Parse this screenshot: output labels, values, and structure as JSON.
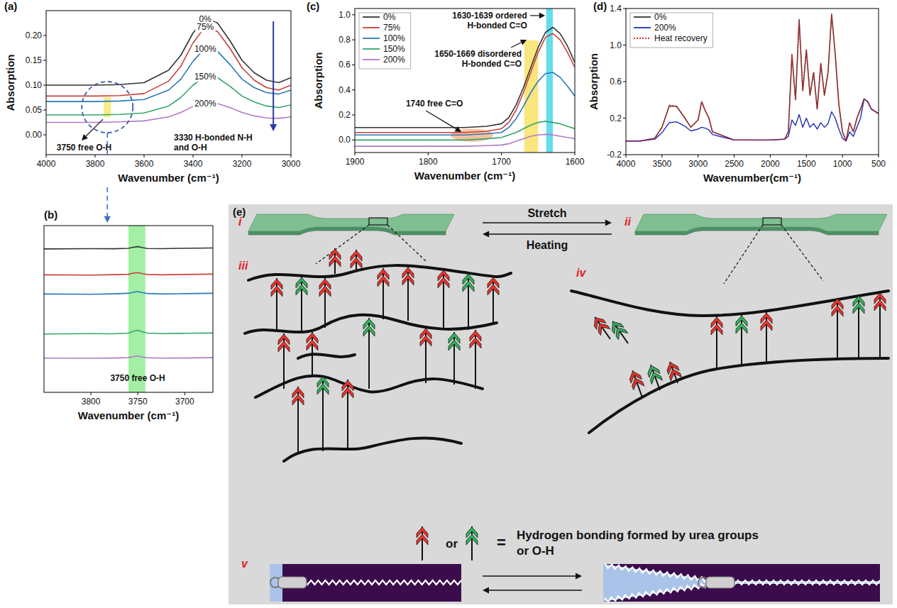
{
  "chart_data": [
    {
      "type": "line",
      "panel_label": "(a)",
      "x_label": "Wavenumber (cm⁻¹)",
      "y_label": "Absorption",
      "xlim": [
        4000,
        3000
      ],
      "xticks": [
        4000,
        3800,
        3600,
        3400,
        3200,
        3000
      ],
      "ylim": [
        -0.04,
        0.25
      ],
      "yticks": [
        {
          "value": 0,
          "label": "0.00"
        },
        0.05,
        {
          "value": 0.1,
          "label": "0.10"
        },
        0.15,
        {
          "value": 0.2,
          "label": "0.20"
        }
      ],
      "legend": "inline",
      "x": [
        4000,
        3900,
        3800,
        3700,
        3600,
        3500,
        3450,
        3400,
        3350,
        3300,
        3250,
        3200,
        3150,
        3100,
        3050,
        3000
      ],
      "series": [
        {
          "name": "0%",
          "color": "#333333",
          "values": [
            0.1,
            0.1,
            0.1,
            0.101,
            0.105,
            0.13,
            0.16,
            0.205,
            0.235,
            0.225,
            0.19,
            0.15,
            0.125,
            0.11,
            0.105,
            0.115
          ]
        },
        {
          "name": "75%",
          "color": "#c9403b",
          "values": [
            0.078,
            0.078,
            0.078,
            0.079,
            0.083,
            0.108,
            0.138,
            0.185,
            0.218,
            0.208,
            0.175,
            0.135,
            0.11,
            0.095,
            0.09,
            0.1
          ]
        },
        {
          "name": "100%",
          "color": "#2a78b8",
          "values": [
            0.067,
            0.067,
            0.067,
            0.068,
            0.071,
            0.09,
            0.112,
            0.148,
            0.175,
            0.168,
            0.142,
            0.112,
            0.095,
            0.085,
            0.082,
            0.09
          ]
        },
        {
          "name": "150%",
          "color": "#35a56a",
          "values": [
            0.04,
            0.04,
            0.04,
            0.041,
            0.044,
            0.058,
            0.075,
            0.1,
            0.118,
            0.115,
            0.098,
            0.078,
            0.066,
            0.058,
            0.055,
            0.06
          ]
        },
        {
          "name": "200%",
          "color": "#b07ac6",
          "values": [
            0.025,
            0.025,
            0.025,
            0.026,
            0.028,
            0.036,
            0.045,
            0.057,
            0.064,
            0.063,
            0.055,
            0.045,
            0.038,
            0.034,
            0.033,
            0.036
          ]
        }
      ],
      "bands": [
        {
          "from": 3765,
          "to": 3735,
          "color": "#f7e96a"
        }
      ],
      "annotations": [
        {
          "lines": [
            "3750 free O-H"
          ]
        },
        {
          "lines": [
            "3330 H-bonded N-H",
            "and O-H"
          ]
        }
      ]
    },
    {
      "type": "line",
      "panel_label": "(b)",
      "x_label": "Wavenumber (cm⁻¹)",
      "xlim": [
        3850,
        3670
      ],
      "xticks": [
        3800,
        3750,
        3700
      ],
      "ylim": [
        0,
        1
      ],
      "tick_labels": "x",
      "x": [
        3850,
        3800,
        3775,
        3760,
        3755,
        3750,
        3745,
        3740,
        3725,
        3700,
        3670
      ],
      "series": [
        {
          "name": "0%",
          "color": "#333333",
          "values": [
            0.86,
            0.862,
            0.861,
            0.864,
            0.87,
            0.874,
            0.868,
            0.863,
            0.862,
            0.864,
            0.866
          ]
        },
        {
          "name": "75%",
          "color": "#c9403b",
          "values": [
            0.705,
            0.703,
            0.706,
            0.708,
            0.715,
            0.718,
            0.712,
            0.707,
            0.705,
            0.707,
            0.709
          ]
        },
        {
          "name": "100%",
          "color": "#2a78b8",
          "values": [
            0.59,
            0.588,
            0.591,
            0.594,
            0.6,
            0.604,
            0.598,
            0.593,
            0.59,
            0.592,
            0.594
          ]
        },
        {
          "name": "150%",
          "color": "#35a56a",
          "values": [
            0.35,
            0.352,
            0.351,
            0.355,
            0.366,
            0.372,
            0.363,
            0.355,
            0.352,
            0.354,
            0.356
          ]
        },
        {
          "name": "200%",
          "color": "#b07ac6",
          "values": [
            0.205,
            0.204,
            0.206,
            0.208,
            0.214,
            0.218,
            0.212,
            0.207,
            0.205,
            0.206,
            0.208
          ]
        }
      ],
      "bands": [
        {
          "from": 3760,
          "to": 3742,
          "color": "#8ceb8c"
        }
      ],
      "annotations": [
        {
          "lines": [
            "3750 free O-H"
          ]
        }
      ]
    },
    {
      "type": "line",
      "panel_label": "(c)",
      "x_label": "Wavenumber (cm⁻¹)",
      "y_label": "Absorption",
      "xlim": [
        1900,
        1600
      ],
      "xticks": [
        1900,
        1800,
        1700,
        1600
      ],
      "ylim": [
        -0.1,
        1.05
      ],
      "yticks": [
        {
          "value": 0,
          "label": "0.0"
        },
        0.2,
        0.4,
        0.6,
        0.8,
        {
          "value": 1,
          "label": "1.0"
        }
      ],
      "legend": "upper left",
      "x": [
        1900,
        1800,
        1750,
        1720,
        1700,
        1690,
        1680,
        1670,
        1660,
        1650,
        1640,
        1630,
        1620,
        1610,
        1600
      ],
      "series": [
        {
          "name": "0%",
          "color": "#333333",
          "values": [
            0.1,
            0.1,
            0.1,
            0.11,
            0.13,
            0.18,
            0.28,
            0.42,
            0.58,
            0.74,
            0.86,
            0.9,
            0.85,
            0.75,
            0.62
          ]
        },
        {
          "name": "75%",
          "color": "#c9403b",
          "values": [
            0.06,
            0.06,
            0.06,
            0.07,
            0.09,
            0.14,
            0.24,
            0.38,
            0.54,
            0.7,
            0.82,
            0.85,
            0.8,
            0.7,
            0.58
          ]
        },
        {
          "name": "100%",
          "color": "#2a78b8",
          "values": [
            0.04,
            0.04,
            0.04,
            0.05,
            0.06,
            0.1,
            0.17,
            0.27,
            0.38,
            0.47,
            0.53,
            0.54,
            0.5,
            0.43,
            0.35
          ]
        },
        {
          "name": "150%",
          "color": "#35a56a",
          "values": [
            0.0,
            0.0,
            0.0,
            0.01,
            0.02,
            0.04,
            0.06,
            0.09,
            0.12,
            0.14,
            0.15,
            0.14,
            0.13,
            0.11,
            0.09
          ]
        },
        {
          "name": "200%",
          "color": "#b07ac6",
          "values": [
            -0.05,
            -0.05,
            -0.05,
            -0.045,
            -0.04,
            -0.03,
            -0.01,
            0.01,
            0.03,
            0.04,
            0.045,
            0.04,
            0.03,
            0.02,
            0.01
          ]
        }
      ],
      "bands": [
        {
          "from": 1669,
          "to": 1650,
          "color": "#f7e05e"
        },
        {
          "from": 1639,
          "to": 1630,
          "color": "#3ed6e6"
        }
      ],
      "annotations": [
        {
          "lines": [
            "1630-1639 ordered",
            "H-bonded C=O"
          ]
        },
        {
          "lines": [
            "1650-1669 disordered",
            "H-bonded C=O"
          ]
        },
        {
          "lines": [
            "1740 free C=O"
          ]
        }
      ]
    },
    {
      "type": "line",
      "panel_label": "(d)",
      "x_label": "Wavenumber(cm⁻¹)",
      "y_label": "Absorption",
      "xlim": [
        4000,
        500
      ],
      "xticks": [
        4000,
        3500,
        3000,
        2500,
        2000,
        1500,
        1000,
        500
      ],
      "ylim": [
        -0.2,
        1.4
      ],
      "yticks": [
        -0.2,
        0.2,
        0.6,
        {
          "value": 1,
          "label": "1.0"
        },
        1.4
      ],
      "legend": "upper left",
      "x": [
        4000,
        3800,
        3600,
        3500,
        3400,
        3300,
        3200,
        3100,
        3000,
        2950,
        2900,
        2850,
        2800,
        2500,
        2000,
        1800,
        1750,
        1700,
        1650,
        1600,
        1550,
        1500,
        1450,
        1400,
        1350,
        1300,
        1250,
        1200,
        1150,
        1100,
        1050,
        1000,
        950,
        900,
        850,
        800,
        750,
        700,
        650,
        600,
        500
      ],
      "series": [
        {
          "name": "0%",
          "color": "#333333",
          "line_style": "solid",
          "values": [
            -0.05,
            -0.05,
            -0.02,
            0.1,
            0.33,
            0.33,
            0.22,
            0.1,
            0.18,
            0.38,
            0.28,
            0.2,
            0.05,
            -0.04,
            -0.04,
            -0.03,
            0.05,
            0.9,
            0.4,
            1.28,
            0.5,
            0.95,
            0.45,
            0.7,
            0.3,
            0.8,
            0.45,
            0.7,
            1.34,
            0.9,
            0.35,
            0.05,
            -0.05,
            0.15,
            0.05,
            0.2,
            0.3,
            0.41,
            0.38,
            0.3,
            0.25
          ]
        },
        {
          "name": "200%",
          "color": "#1f2fb5",
          "line_style": "solid",
          "values": [
            -0.05,
            -0.05,
            -0.03,
            0.04,
            0.15,
            0.16,
            0.12,
            0.06,
            0.08,
            0.1,
            0.09,
            0.07,
            0.02,
            -0.04,
            -0.04,
            -0.03,
            0.0,
            0.18,
            0.12,
            0.24,
            0.1,
            0.2,
            0.1,
            0.14,
            0.08,
            0.15,
            0.1,
            0.14,
            0.27,
            0.2,
            0.08,
            -0.02,
            -0.05,
            0.05,
            0.0,
            0.1,
            0.2,
            0.41,
            0.38,
            0.3,
            0.25
          ]
        },
        {
          "name": "Heat recovery",
          "color": "#d62728",
          "line_style": "dotted",
          "values": [
            -0.05,
            -0.05,
            -0.02,
            0.1,
            0.34,
            0.33,
            0.22,
            0.1,
            0.18,
            0.38,
            0.28,
            0.2,
            0.05,
            -0.04,
            -0.04,
            -0.03,
            0.05,
            0.89,
            0.4,
            1.27,
            0.5,
            0.94,
            0.45,
            0.7,
            0.3,
            0.79,
            0.45,
            0.7,
            1.33,
            0.9,
            0.35,
            0.05,
            -0.05,
            0.15,
            0.05,
            0.2,
            0.3,
            0.41,
            0.38,
            0.3,
            0.25
          ]
        }
      ]
    }
  ],
  "diagram": {
    "panel_label": "(e)",
    "stretch_label": "Stretch",
    "heating_label": "Heating",
    "stages": [
      "i",
      "ii",
      "iii",
      "iv",
      "v"
    ],
    "key": {
      "or": "or",
      "equals": "=",
      "text": "Hydrogen bonding formed by urea groups or O-H"
    }
  }
}
